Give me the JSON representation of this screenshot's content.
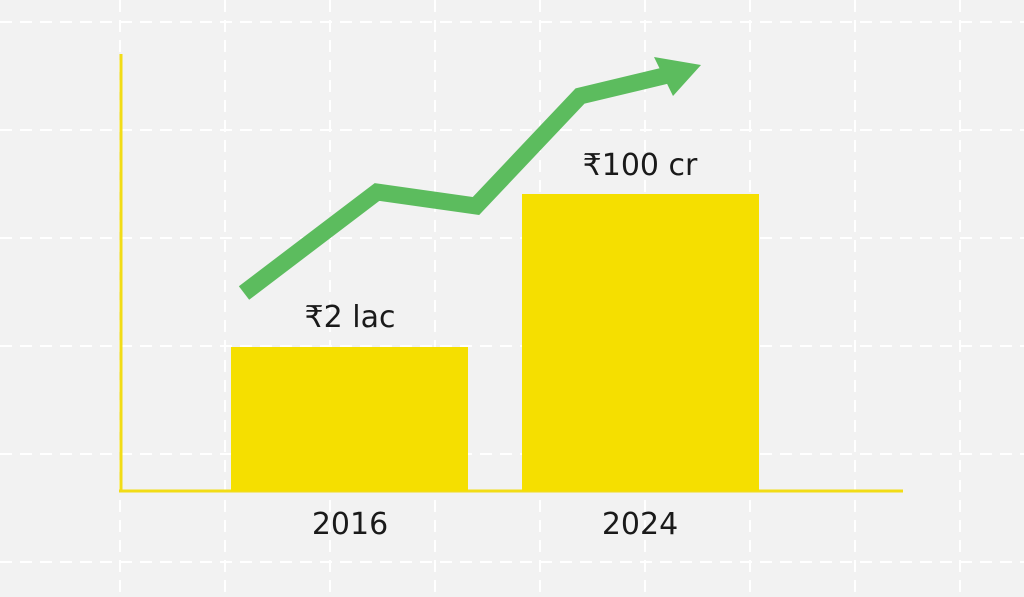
{
  "chart_data": {
    "type": "bar",
    "categories": [
      "2016",
      "2024"
    ],
    "data_labels": [
      "₹2 lac",
      "₹100 cr"
    ],
    "title": "",
    "xlabel": "",
    "ylabel": "",
    "grid": true,
    "trend_arrow": "increasing",
    "colors": {
      "bar": "#f5df00",
      "axis": "#f2dc16",
      "arrow": "#5cbc5e",
      "grid": "#ffffff",
      "background": "#f2f2f2"
    }
  }
}
